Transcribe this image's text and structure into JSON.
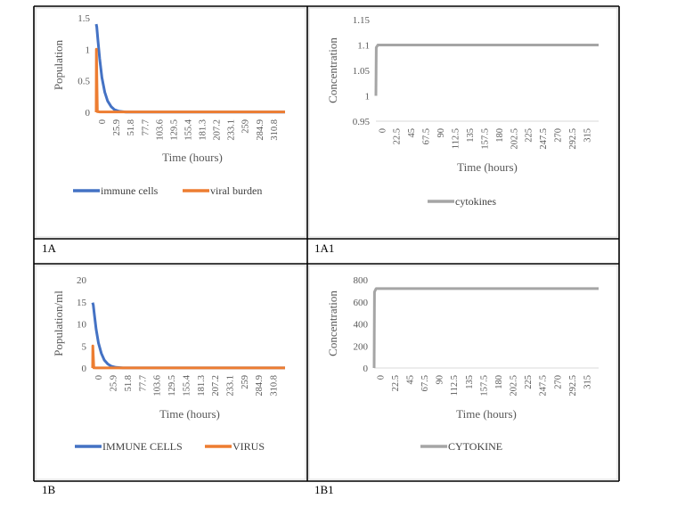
{
  "panels": [
    {
      "label": "1A",
      "chart_data": {
        "type": "line",
        "title": "",
        "xlabel": "Time (hours)",
        "ylabel": "Population",
        "xlim": [
          0,
          330
        ],
        "ylim": [
          0,
          1.5
        ],
        "x_tick_labels": [
          "0",
          "25.9",
          "51.8",
          "77.7",
          "103.6",
          "129.5",
          "155.4",
          "181.3",
          "207.2",
          "233.1",
          "259",
          "284.9",
          "310.8"
        ],
        "y_tick_labels": [
          "0",
          "0.5",
          "1",
          "1.5"
        ],
        "y_ticks": [
          0,
          0.5,
          1,
          1.5
        ],
        "legend_position": "bottom",
        "series": [
          {
            "name": "immune cells",
            "color": "#4472C4",
            "x": [
              0,
              1,
              3,
              6,
              10,
              15,
              20,
              26,
              32,
              40,
              52,
              330
            ],
            "y": [
              1.4,
              1.36,
              1.15,
              0.85,
              0.55,
              0.32,
              0.18,
              0.09,
              0.04,
              0.015,
              0.003,
              0.003
            ]
          },
          {
            "name": "viral burden",
            "color": "#ED7D31",
            "x": [
              0,
              0.3,
              2,
              6,
              330
            ],
            "y": [
              0,
              1.0,
              0.01,
              0.005,
              0.005
            ]
          }
        ]
      }
    },
    {
      "label": "1A1",
      "chart_data": {
        "type": "line",
        "title": "",
        "xlabel": "Time (hours)",
        "ylabel": "Concentration",
        "xlim": [
          0,
          337.5
        ],
        "ylim": [
          0.95,
          1.15
        ],
        "x_tick_labels": [
          "0",
          "22.5",
          "45",
          "67.5",
          "90",
          "112.5",
          "135",
          "157.5",
          "180",
          "202.5",
          "225",
          "247.5",
          "270",
          "292.5",
          "315"
        ],
        "y_tick_labels": [
          "0.95",
          "1",
          "1.05",
          "1.1",
          "1.15"
        ],
        "y_ticks": [
          0.95,
          1,
          1.05,
          1.1,
          1.15
        ],
        "legend_position": "bottom",
        "series": [
          {
            "name": "cytokines",
            "color": "#A5A5A5",
            "x": [
              0,
              0.5,
              3,
              337.5
            ],
            "y": [
              1.0,
              1.095,
              1.1,
              1.1
            ]
          }
        ]
      }
    },
    {
      "label": "1B",
      "chart_data": {
        "type": "line",
        "title": "",
        "xlabel": "Time (hours)",
        "ylabel": "Population/ml",
        "xlim": [
          0,
          330
        ],
        "ylim": [
          0,
          20
        ],
        "x_tick_labels": [
          "0",
          "25.9",
          "51.8",
          "77.7",
          "103.6",
          "129.5",
          "155.4",
          "181.3",
          "207.2",
          "233.1",
          "259",
          "284.9",
          "310.8"
        ],
        "y_tick_labels": [
          "0",
          "5",
          "10",
          "15",
          "20"
        ],
        "y_ticks": [
          0,
          5,
          10,
          15,
          20
        ],
        "legend_position": "bottom",
        "series": [
          {
            "name": "IMMUNE CELLS",
            "color": "#4472C4",
            "x": [
              0,
              1,
              3,
              6,
              10,
              15,
              20,
              26,
              32,
              40,
              52,
              330
            ],
            "y": [
              14.8,
              14.3,
              12,
              8.8,
              5.7,
              3.3,
              1.8,
              0.9,
              0.4,
              0.15,
              0.03,
              0.03
            ]
          },
          {
            "name": "VIRUS",
            "color": "#ED7D31",
            "x": [
              0,
              0.3,
              2,
              6,
              330
            ],
            "y": [
              0,
              5.0,
              0.05,
              0.02,
              0.02
            ]
          }
        ]
      }
    },
    {
      "label": "1B1",
      "chart_data": {
        "type": "line",
        "title": "",
        "xlabel": "Time (hours)",
        "ylabel": "Concentration",
        "xlim": [
          0,
          337.5
        ],
        "ylim": [
          0,
          800
        ],
        "x_tick_labels": [
          "0",
          "22.5",
          "45",
          "67.5",
          "90",
          "112.5",
          "135",
          "157.5",
          "180",
          "202.5",
          "225",
          "247.5",
          "270",
          "292.5",
          "315"
        ],
        "y_tick_labels": [
          "0",
          "200",
          "400",
          "600",
          "800"
        ],
        "y_ticks": [
          0,
          200,
          400,
          600,
          800
        ],
        "legend_position": "bottom",
        "series": [
          {
            "name": "CYTOKINE",
            "color": "#A5A5A5",
            "x": [
              0,
              0.5,
              3,
              337.5
            ],
            "y": [
              0,
              690,
              720,
              720
            ]
          }
        ]
      }
    }
  ]
}
